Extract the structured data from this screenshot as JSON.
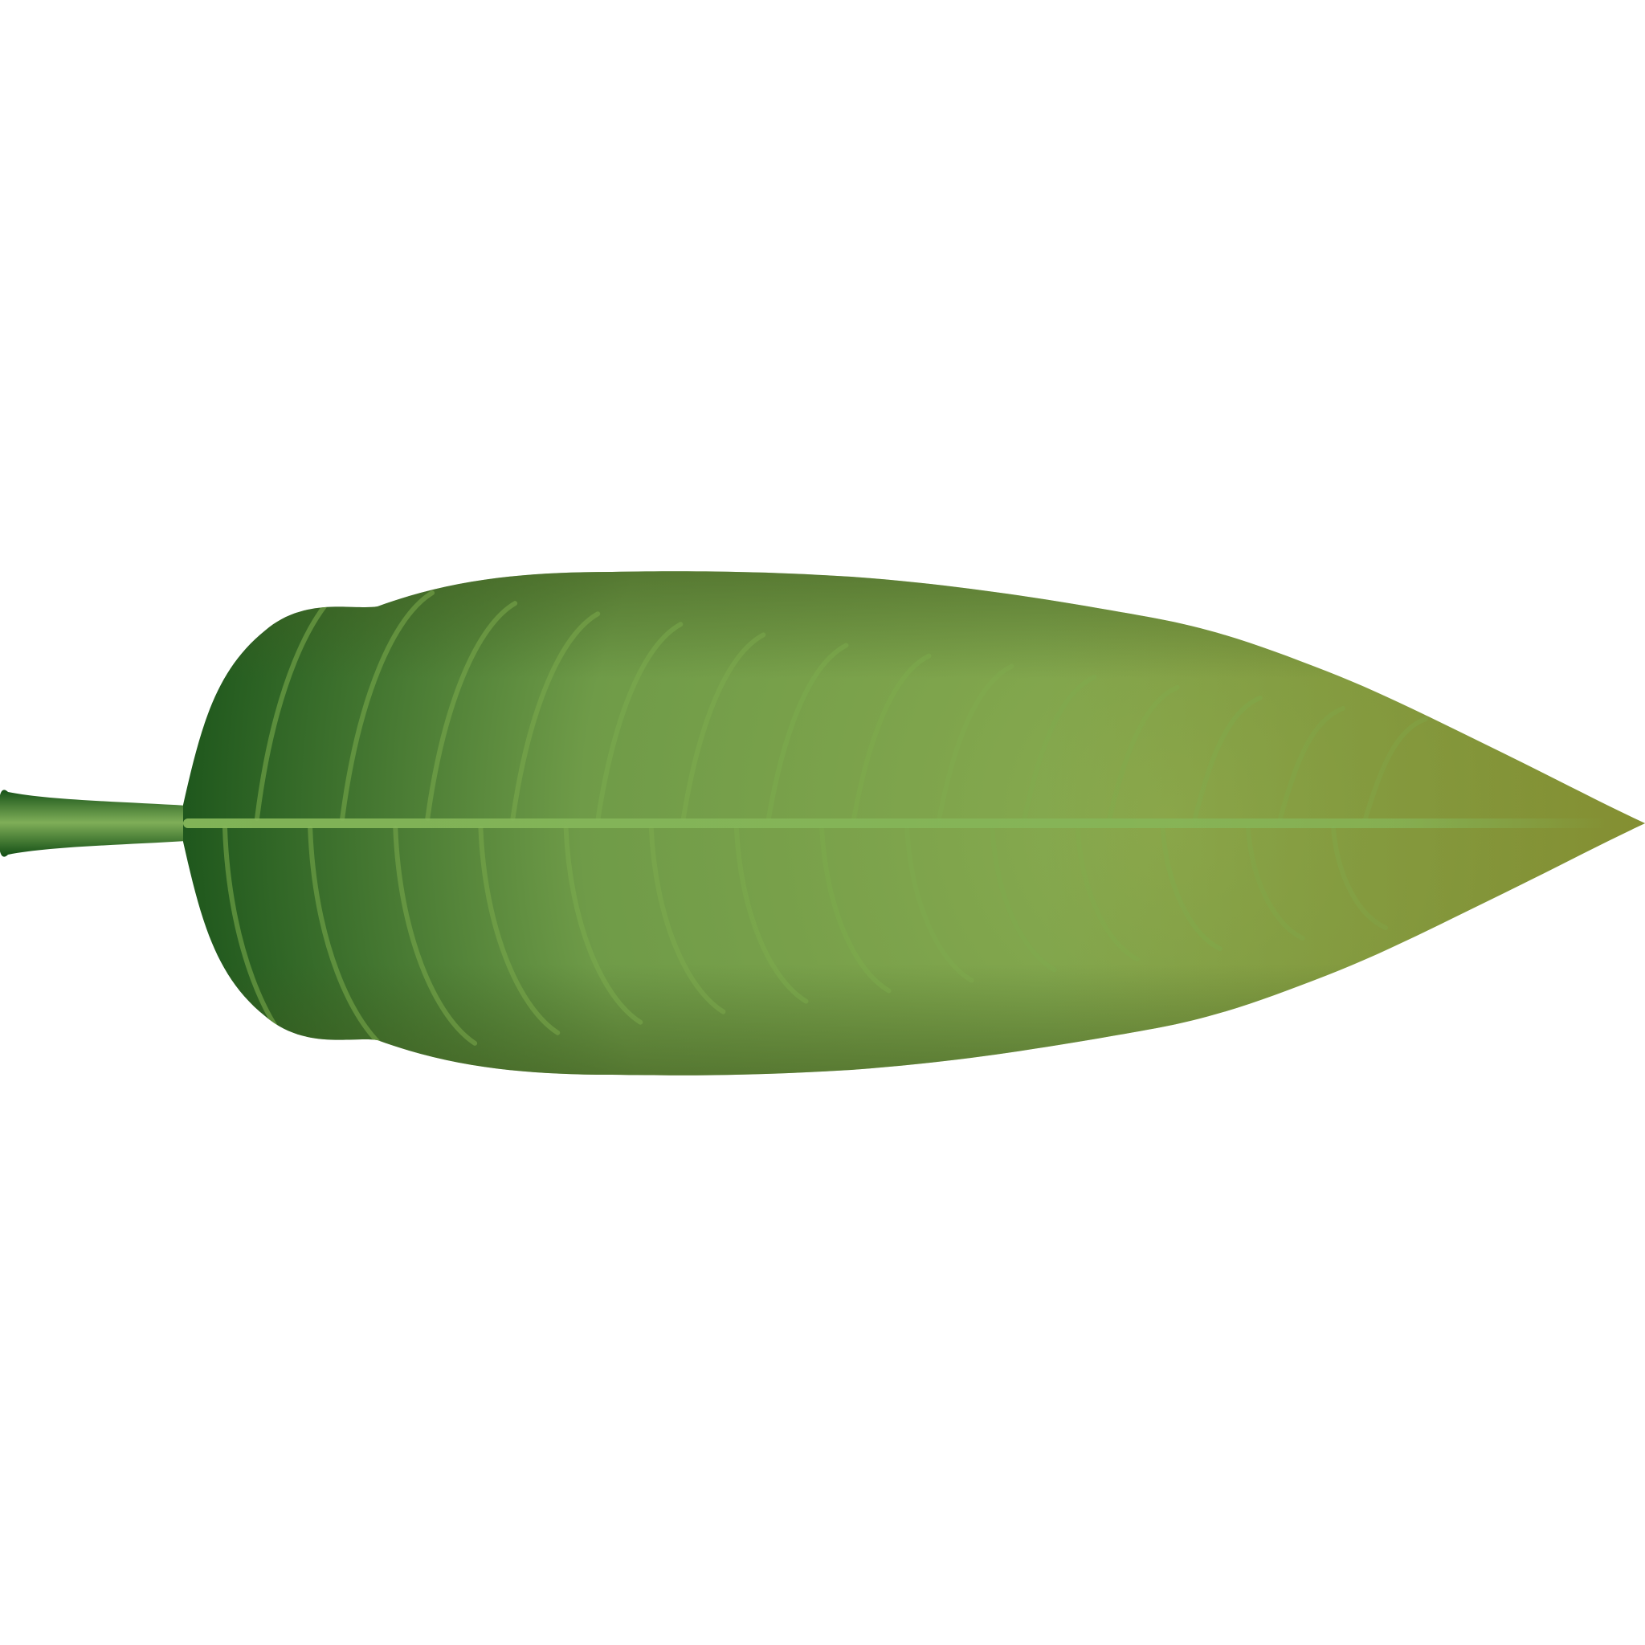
{
  "scene": {
    "subject": "leaf",
    "icon": "leaf-icon",
    "background_color": "#ffffff"
  },
  "colors": {
    "blade_dark": "#0f4a14",
    "blade_mid": "#6f9b48",
    "blade_light": "#8aab4f",
    "blade_tip": "#8a8a2a",
    "blade_edge_top": "#3f5a1e",
    "vein": "#7fae4e",
    "midrib": "#86b85a",
    "petiole_dark": "#0e4a12",
    "petiole_light": "#7fae58"
  }
}
